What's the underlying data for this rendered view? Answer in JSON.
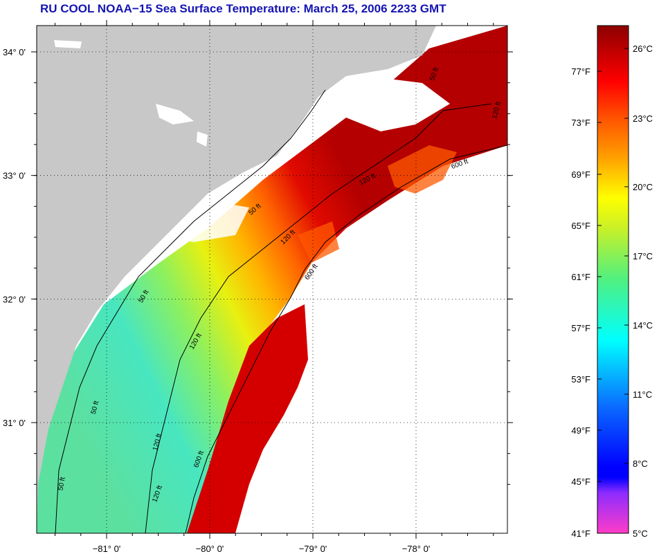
{
  "title": "RU COOL  NOAA−15  Sea Surface Temperature:  March 25, 2006 2233 GMT",
  "map": {
    "lat_ticks": [
      {
        "value": 34,
        "label": "34° 0'"
      },
      {
        "value": 33,
        "label": "33° 0'"
      },
      {
        "value": 32,
        "label": "32° 0'"
      },
      {
        "value": 31,
        "label": "31° 0'"
      }
    ],
    "lon_ticks": [
      {
        "value": -81,
        "label": "−81° 0'"
      },
      {
        "value": -80,
        "label": "−80° 0'"
      },
      {
        "value": -79,
        "label": "−79° 0'"
      },
      {
        "value": -78,
        "label": "−78° 0'"
      }
    ],
    "contour_labels": [
      {
        "text": "50 ft"
      },
      {
        "text": "50 ft"
      },
      {
        "text": "50 ft"
      },
      {
        "text": "50 ft"
      },
      {
        "text": "50 ft"
      },
      {
        "text": "120 ft"
      },
      {
        "text": "120 ft"
      },
      {
        "text": "120 ft"
      },
      {
        "text": "120 ft"
      },
      {
        "text": "120 ft"
      },
      {
        "text": "120 ft"
      },
      {
        "text": "600 ft"
      },
      {
        "text": "600 ft"
      },
      {
        "text": "600 ft"
      }
    ]
  },
  "color_scale": {
    "fahrenheit_labels": [
      "77°F",
      "73°F",
      "69°F",
      "65°F",
      "61°F",
      "57°F",
      "53°F",
      "49°F",
      "45°F",
      "41°F"
    ],
    "celsius_labels": [
      "26°C",
      "23°C",
      "20°C",
      "17°C",
      "14°C",
      "11°C",
      "8°C",
      "5°C"
    ]
  },
  "colors": {
    "land": "#c8c8c8",
    "cloud": "#ffffff",
    "title": "#1414b4"
  }
}
